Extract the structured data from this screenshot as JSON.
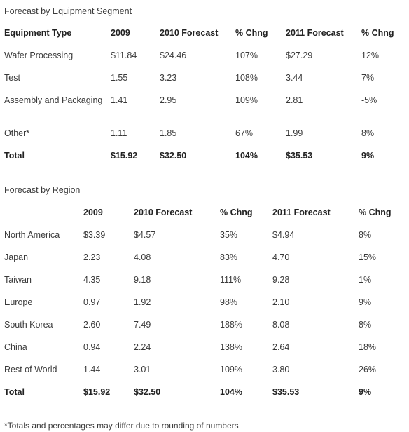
{
  "segment": {
    "title": "Forecast by Equipment Segment",
    "headers": [
      "Equipment Type",
      "2009",
      "2010 Forecast",
      "% Chng",
      "2011 Forecast",
      "% Chng"
    ],
    "rows": [
      [
        "Wafer Processing",
        "$11.84",
        "$24.46",
        "107%",
        "$27.29",
        "12%"
      ],
      [
        "Test",
        "1.55",
        "3.23",
        "108%",
        "3.44",
        "7%"
      ],
      [
        "Assembly and Packaging",
        "1.41",
        "2.95",
        "109%",
        "2.81",
        "-5%"
      ],
      [
        "Other*",
        "1.11",
        "1.85",
        "67%",
        "1.99",
        "8%"
      ]
    ],
    "total": [
      "Total",
      "$15.92",
      "$32.50",
      "104%",
      "$35.53",
      "9%"
    ]
  },
  "region": {
    "title": "Forecast by Region",
    "headers": [
      "",
      "2009",
      "2010 Forecast",
      "% Chng",
      "2011 Forecast",
      "% Chng"
    ],
    "rows": [
      [
        "North America",
        "$3.39",
        "$4.57",
        "35%",
        "$4.94",
        "8%"
      ],
      [
        "Japan",
        "2.23",
        "4.08",
        "83%",
        "4.70",
        "15%"
      ],
      [
        "Taiwan",
        "4.35",
        "9.18",
        "111%",
        "9.28",
        "1%"
      ],
      [
        "Europe",
        "0.97",
        "1.92",
        "98%",
        "2.10",
        "9%"
      ],
      [
        "South Korea",
        "2.60",
        "7.49",
        "188%",
        "8.08",
        "8%"
      ],
      [
        "China",
        "0.94",
        "2.24",
        "138%",
        "2.64",
        "18%"
      ],
      [
        "Rest of World",
        "1.44",
        "3.01",
        "109%",
        "3.80",
        "26%"
      ]
    ],
    "total": [
      "Total",
      "$15.92",
      "$32.50",
      "104%",
      "$35.53",
      "9%"
    ]
  },
  "footnote": "*Totals and percentages may differ due to rounding of numbers"
}
